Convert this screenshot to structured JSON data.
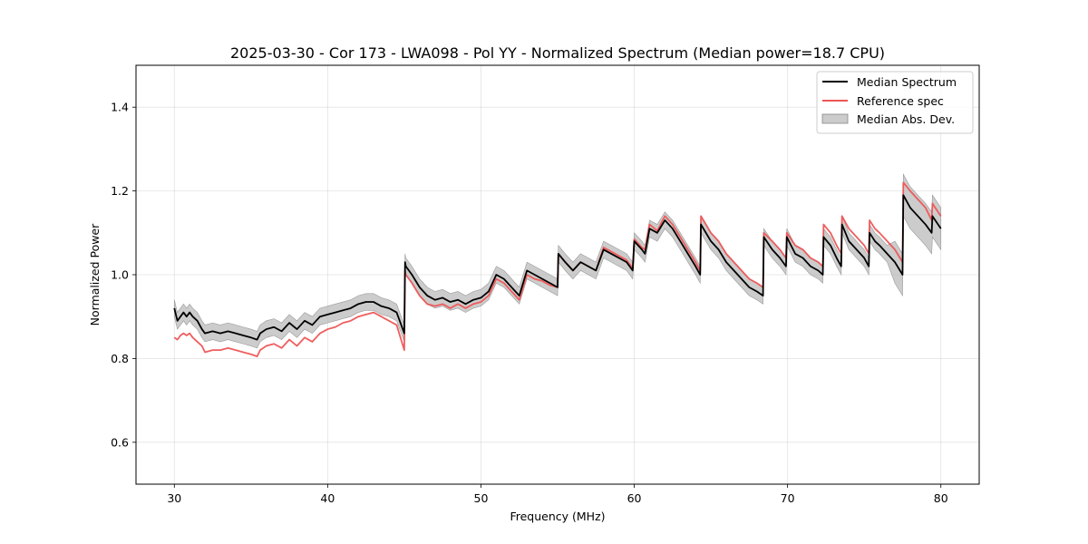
{
  "chart_data": {
    "type": "line",
    "title": "2025-03-30 - Cor 173 - LWA098 - Pol YY - Normalized Spectrum (Median power=18.7 CPU)",
    "xlabel": "Frequency (MHz)",
    "ylabel": "Normalized Power",
    "xlim": [
      27.5,
      82.5
    ],
    "ylim": [
      0.5,
      1.5
    ],
    "xticks": [
      30,
      40,
      50,
      60,
      70,
      80
    ],
    "yticks": [
      0.6,
      0.8,
      1.0,
      1.2,
      1.4
    ],
    "grid": true,
    "legend_position": "top-right",
    "series": [
      {
        "name": "Median Spectrum",
        "color": "#000000",
        "x": [
          30.0,
          30.2,
          30.4,
          30.6,
          30.8,
          31.0,
          31.2,
          31.5,
          31.8,
          32.0,
          32.5,
          33.0,
          33.5,
          34.0,
          34.5,
          35.0,
          35.4,
          35.6,
          36.0,
          36.5,
          37.0,
          37.5,
          38.0,
          38.5,
          39.0,
          39.5,
          40.0,
          40.5,
          41.0,
          41.5,
          42.0,
          42.5,
          43.0,
          43.5,
          44.0,
          44.5,
          45.0,
          45.05,
          45.1,
          45.5,
          46.0,
          46.5,
          47.0,
          47.5,
          48.0,
          48.5,
          49.0,
          49.5,
          50.0,
          50.5,
          51.0,
          51.5,
          52.0,
          52.5,
          53.0,
          53.5,
          54.0,
          54.5,
          55.0,
          55.05,
          55.5,
          56.0,
          56.5,
          57.0,
          57.5,
          58.0,
          58.5,
          59.0,
          59.5,
          59.9,
          60.0,
          60.5,
          60.7,
          61.0,
          61.5,
          62.0,
          62.5,
          63.0,
          63.5,
          64.0,
          64.3,
          64.35,
          65.0,
          65.5,
          66.0,
          66.5,
          67.0,
          67.5,
          68.0,
          68.4,
          68.45,
          69.0,
          69.5,
          69.9,
          69.95,
          70.5,
          71.0,
          71.5,
          72.0,
          72.3,
          72.35,
          72.8,
          73.2,
          73.5,
          73.55,
          74.0,
          74.5,
          75.0,
          75.3,
          75.35,
          75.7,
          76.0,
          76.5,
          77.0,
          77.5,
          77.55,
          78.0,
          78.5,
          79.0,
          79.4,
          79.45,
          80.0
        ],
        "y": [
          0.92,
          0.89,
          0.9,
          0.91,
          0.9,
          0.91,
          0.9,
          0.89,
          0.87,
          0.86,
          0.865,
          0.86,
          0.865,
          0.86,
          0.855,
          0.85,
          0.845,
          0.86,
          0.87,
          0.875,
          0.865,
          0.885,
          0.87,
          0.89,
          0.88,
          0.9,
          0.905,
          0.91,
          0.915,
          0.92,
          0.93,
          0.935,
          0.935,
          0.925,
          0.92,
          0.91,
          0.86,
          1.03,
          1.02,
          1.0,
          0.97,
          0.95,
          0.94,
          0.945,
          0.935,
          0.94,
          0.93,
          0.94,
          0.945,
          0.96,
          1.0,
          0.99,
          0.97,
          0.95,
          1.01,
          1.0,
          0.99,
          0.98,
          0.97,
          1.05,
          1.03,
          1.01,
          1.03,
          1.02,
          1.01,
          1.06,
          1.05,
          1.04,
          1.03,
          1.01,
          1.08,
          1.06,
          1.05,
          1.11,
          1.1,
          1.13,
          1.11,
          1.08,
          1.05,
          1.02,
          1.0,
          1.12,
          1.08,
          1.06,
          1.03,
          1.01,
          0.99,
          0.97,
          0.96,
          0.95,
          1.09,
          1.06,
          1.04,
          1.02,
          1.09,
          1.05,
          1.04,
          1.02,
          1.01,
          1.0,
          1.09,
          1.07,
          1.04,
          1.02,
          1.12,
          1.08,
          1.06,
          1.04,
          1.02,
          1.1,
          1.08,
          1.07,
          1.05,
          1.03,
          1.0,
          1.19,
          1.16,
          1.14,
          1.12,
          1.1,
          1.14,
          1.11
        ]
      },
      {
        "name": "Reference spec",
        "color": "#ee5555",
        "x": [
          30.0,
          30.2,
          30.4,
          30.6,
          30.8,
          31.0,
          31.2,
          31.5,
          31.8,
          32.0,
          32.5,
          33.0,
          33.5,
          34.0,
          34.5,
          35.0,
          35.4,
          35.6,
          36.0,
          36.5,
          37.0,
          37.5,
          38.0,
          38.5,
          39.0,
          39.5,
          40.0,
          40.5,
          41.0,
          41.5,
          42.0,
          42.5,
          43.0,
          43.5,
          44.0,
          44.5,
          45.0,
          45.05,
          45.1,
          45.5,
          46.0,
          46.5,
          47.0,
          47.5,
          48.0,
          48.5,
          49.0,
          49.5,
          50.0,
          50.5,
          51.0,
          51.5,
          52.0,
          52.5,
          53.0,
          53.5,
          54.0,
          54.5,
          55.0,
          55.05,
          55.5,
          56.0,
          56.5,
          57.0,
          57.5,
          58.0,
          58.5,
          59.0,
          59.5,
          59.9,
          60.0,
          60.5,
          60.7,
          61.0,
          61.5,
          62.0,
          62.5,
          63.0,
          63.5,
          64.0,
          64.3,
          64.35,
          65.0,
          65.5,
          66.0,
          66.5,
          67.0,
          67.5,
          68.0,
          68.4,
          68.45,
          69.0,
          69.5,
          69.9,
          69.95,
          70.5,
          71.0,
          71.5,
          72.0,
          72.3,
          72.35,
          72.8,
          73.2,
          73.5,
          73.55,
          74.0,
          74.5,
          75.0,
          75.3,
          75.35,
          75.7,
          76.0,
          76.5,
          77.0,
          77.5,
          77.55,
          78.0,
          78.5,
          79.0,
          79.4,
          79.45,
          80.0
        ],
        "y": [
          0.85,
          0.845,
          0.855,
          0.86,
          0.855,
          0.86,
          0.85,
          0.84,
          0.83,
          0.815,
          0.82,
          0.82,
          0.825,
          0.82,
          0.815,
          0.81,
          0.805,
          0.82,
          0.83,
          0.835,
          0.825,
          0.845,
          0.83,
          0.85,
          0.84,
          0.86,
          0.87,
          0.875,
          0.885,
          0.89,
          0.9,
          0.905,
          0.91,
          0.9,
          0.89,
          0.88,
          0.82,
          1.01,
          1.0,
          0.98,
          0.95,
          0.93,
          0.925,
          0.93,
          0.92,
          0.93,
          0.92,
          0.93,
          0.935,
          0.95,
          0.99,
          0.98,
          0.96,
          0.94,
          1.0,
          0.99,
          0.985,
          0.975,
          0.97,
          1.05,
          1.03,
          1.01,
          1.03,
          1.02,
          1.01,
          1.065,
          1.055,
          1.045,
          1.035,
          1.015,
          1.085,
          1.065,
          1.06,
          1.12,
          1.105,
          1.14,
          1.12,
          1.09,
          1.06,
          1.03,
          1.01,
          1.14,
          1.1,
          1.08,
          1.05,
          1.03,
          1.01,
          0.99,
          0.98,
          0.97,
          1.1,
          1.08,
          1.06,
          1.04,
          1.1,
          1.07,
          1.06,
          1.04,
          1.03,
          1.02,
          1.12,
          1.1,
          1.07,
          1.05,
          1.14,
          1.11,
          1.09,
          1.07,
          1.05,
          1.13,
          1.11,
          1.1,
          1.08,
          1.06,
          1.03,
          1.22,
          1.2,
          1.18,
          1.16,
          1.13,
          1.17,
          1.14
        ]
      }
    ],
    "bands": [
      {
        "name": "Median Abs. Dev.",
        "color": "#b0b0b0",
        "of_series": "Median Spectrum",
        "half_width": 0.02,
        "half_width_above_77": 0.05
      }
    ]
  }
}
